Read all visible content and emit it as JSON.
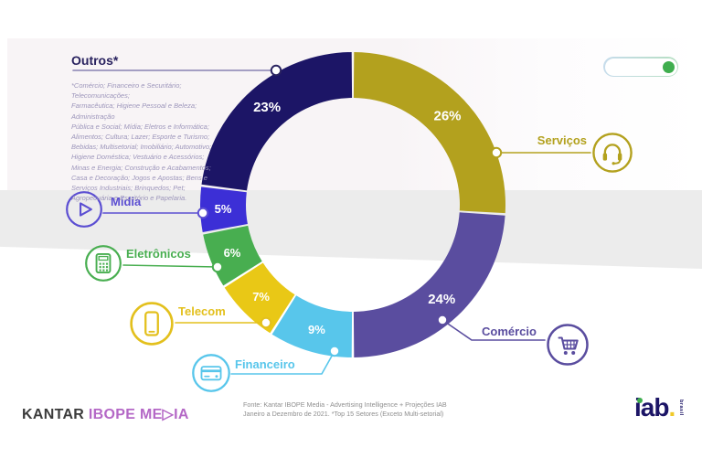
{
  "chart_data": {
    "type": "pie",
    "subtype": "donut",
    "unit": "%",
    "start_angle_deg": 0,
    "direction": "clockwise",
    "segments": [
      {
        "label": "Serviços",
        "value": 26,
        "color": "#b3a11e",
        "icon": "headset-icon"
      },
      {
        "label": "Comércio",
        "value": 24,
        "color": "#5a4d9f",
        "icon": "shopping-cart-icon"
      },
      {
        "label": "Financeiro",
        "value": 9,
        "color": "#58c6eb",
        "icon": "credit-card-icon"
      },
      {
        "label": "Telecom",
        "value": 7,
        "color": "#e9c816",
        "label_color": "#e3c01d",
        "icon": "smartphone-icon"
      },
      {
        "label": "Eletrônicos",
        "value": 6,
        "color": "#48ae50",
        "icon": "calculator-icon"
      },
      {
        "label": "Mídia",
        "value": 5,
        "color": "#3c2fd6",
        "label_color": "#5b4ed2",
        "icon": "play-icon"
      },
      {
        "label": "Outros*",
        "value": 23,
        "color": "#1c1566",
        "label_color": "#29225f",
        "line_color": "#8781b2"
      }
    ]
  },
  "outros_note": {
    "title": "Outros*",
    "lines": [
      "*Comércio; Financeiro e Securitário; Telecomunicações;",
      "Farmacêutica; Higiene Pessoal e Beleza; Administração",
      "Pública e Social; Mídia; Eletros e Informática;",
      "Alimentos; Cultura; Lazer; Esporte e Turismo;",
      "Bebidas; Multisetorial; Imobiliário; Automotivo;",
      "Higiene Doméstica; Vestuário e Acessórios;",
      "Minas e Energia; Construção e Acabamentos;",
      "Casa e Decoração; Jogos e Apostas; Bens e",
      "Serviços Industriais; Brinquedos; Pet;",
      "Agropecuária e Escritório e Papelaria."
    ]
  },
  "toggle": {
    "state": "on",
    "knob_color": "#3fae4e"
  },
  "source": {
    "lines": [
      "Fonte: Kantar IBOPE Media - Advertising Intelligence + Projeções IAB",
      "Janeiro a Dezembro de 2021. *Top 15 Setores (Exceto Multi-setorial)"
    ]
  },
  "logos": {
    "kantar": "KANTAR",
    "ibope": "IBOPE ME▷IA",
    "iab": "iab",
    "iab_period": ".",
    "iab_sub": "brasil"
  }
}
